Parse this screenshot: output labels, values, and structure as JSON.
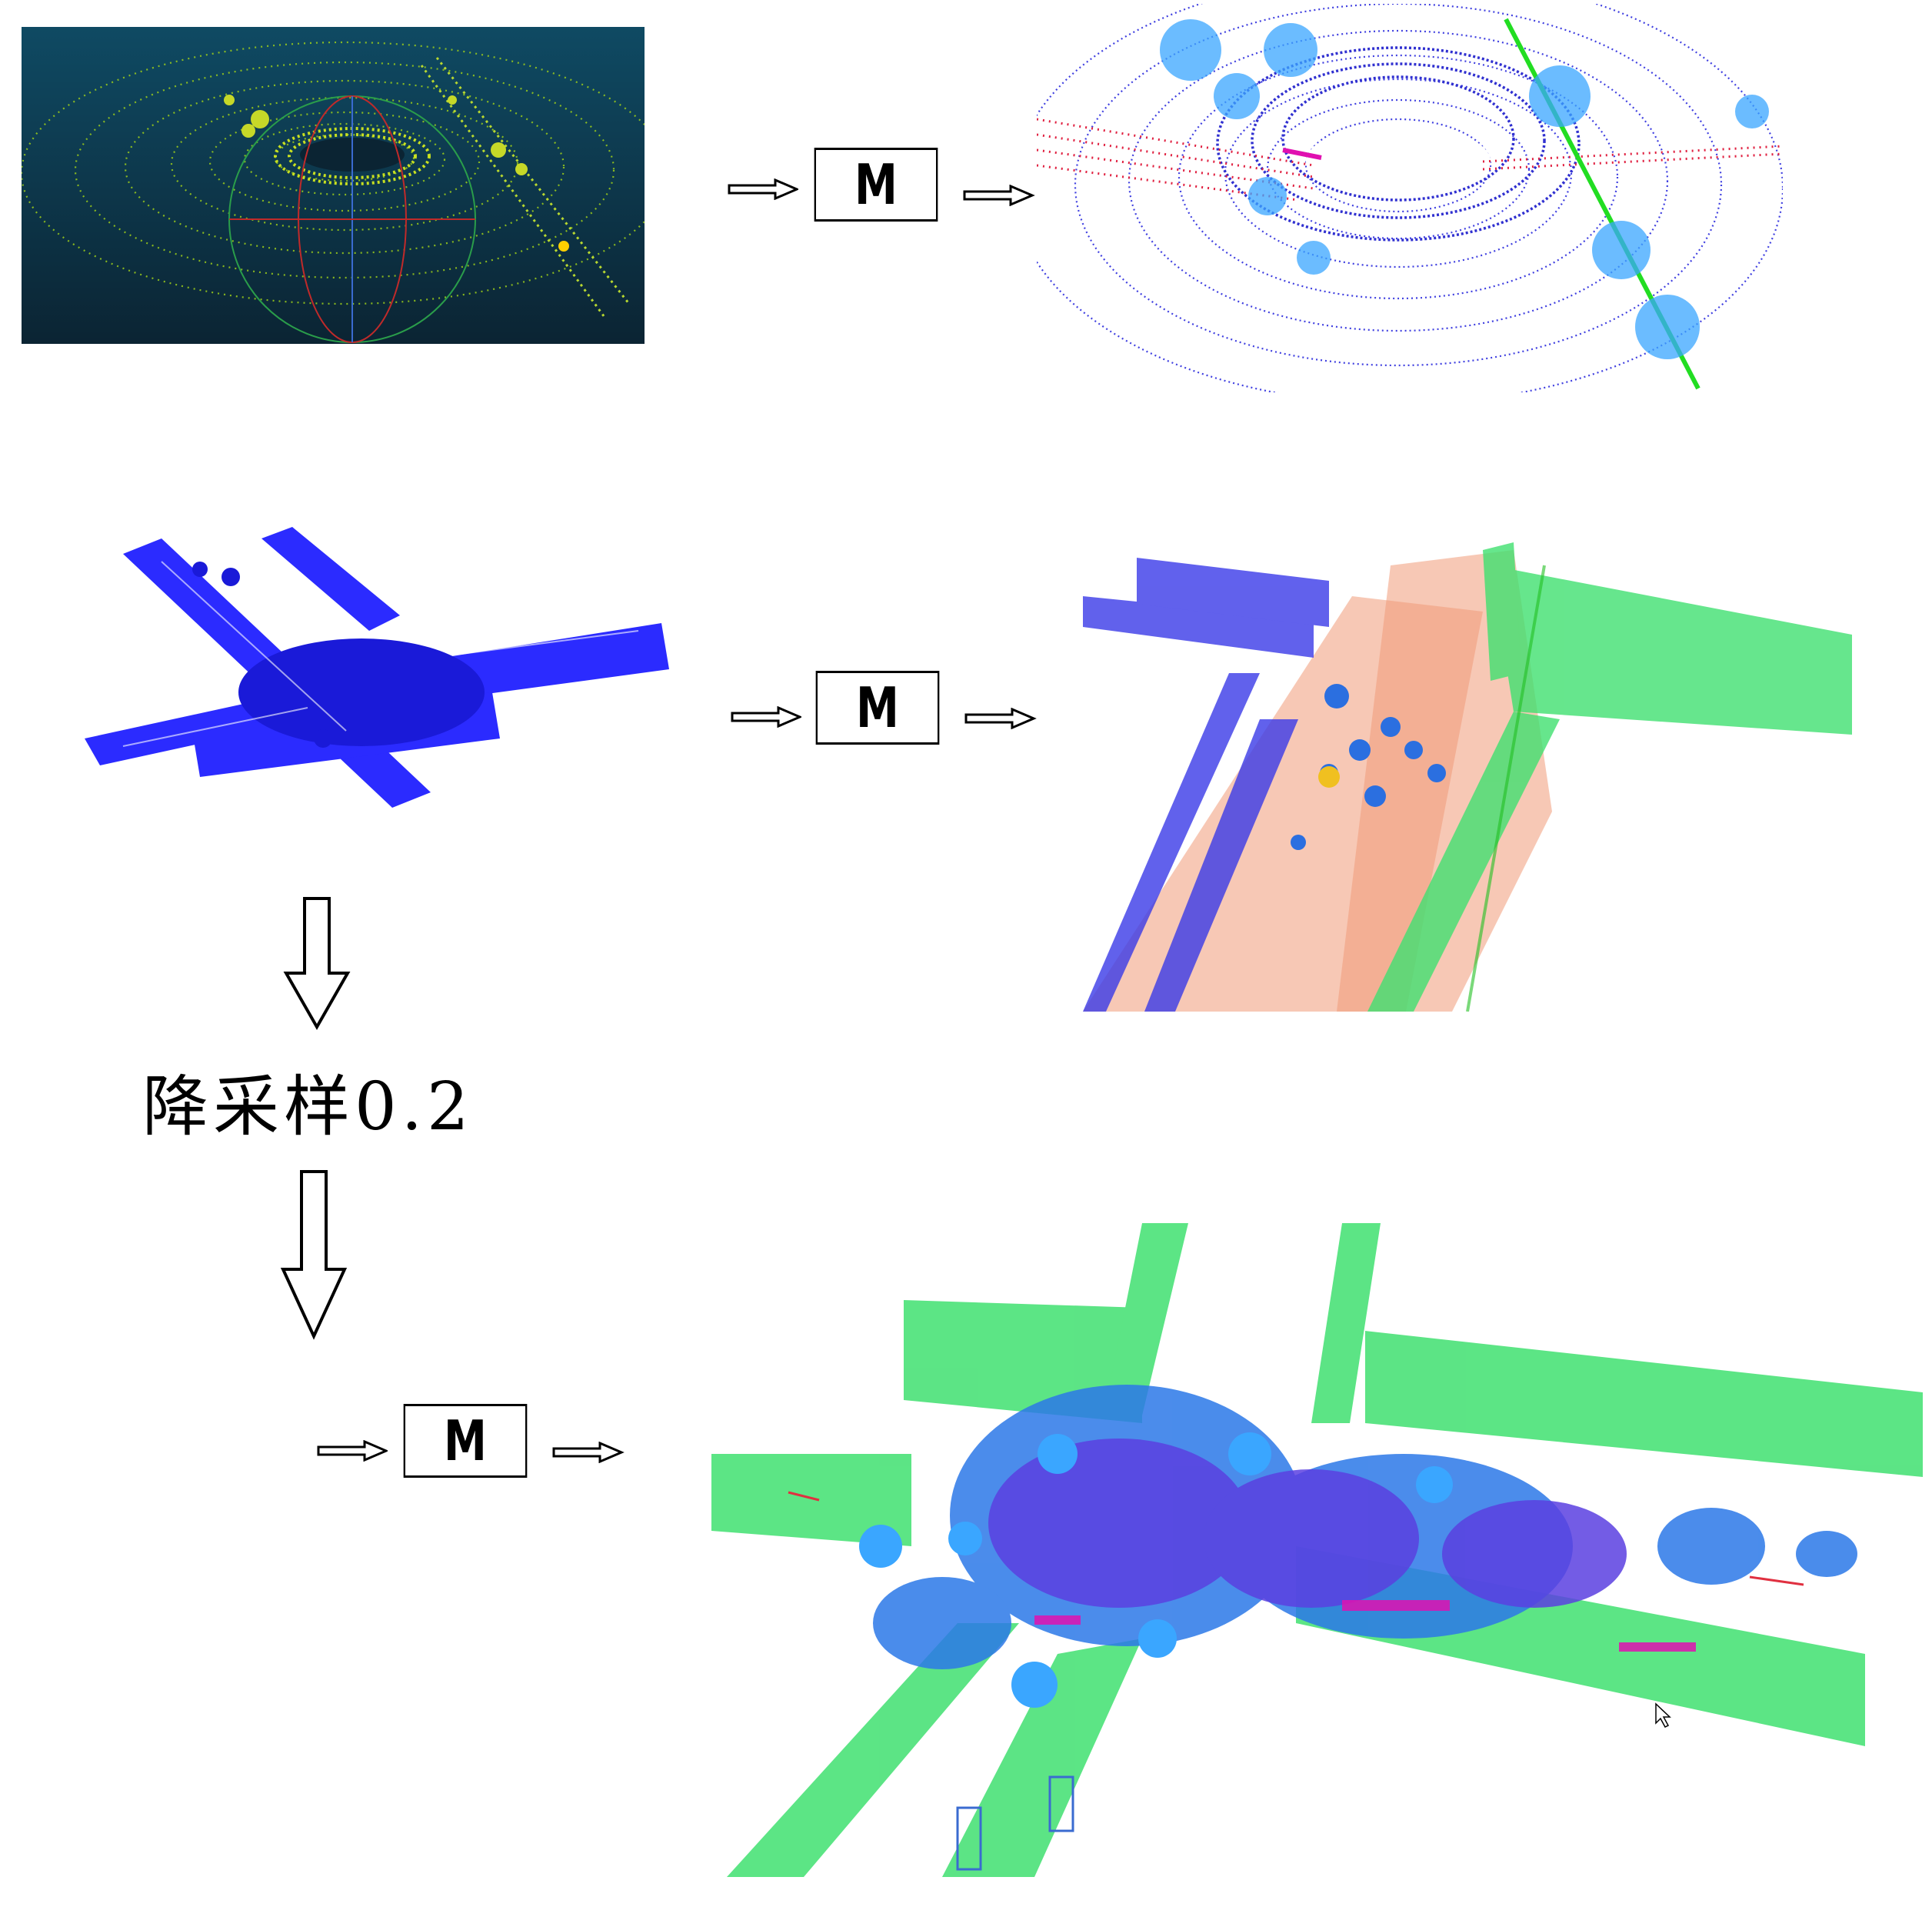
{
  "pipeline": {
    "model_label": "M",
    "downsample_label": "降采样0.2"
  },
  "colors": {
    "lidar_background_top": "#0f4a63",
    "lidar_background_bottom": "#0b2433",
    "raw_points": "#9ecf1a",
    "building": "#2b2bff",
    "vegetation": "#3aa6ff",
    "road": "#5a40e0",
    "ground": "#f09a78",
    "pole_green": "#22dd22",
    "facade_green": "#40e070",
    "car_red": "#e03040",
    "magenta": "#e010b0"
  }
}
